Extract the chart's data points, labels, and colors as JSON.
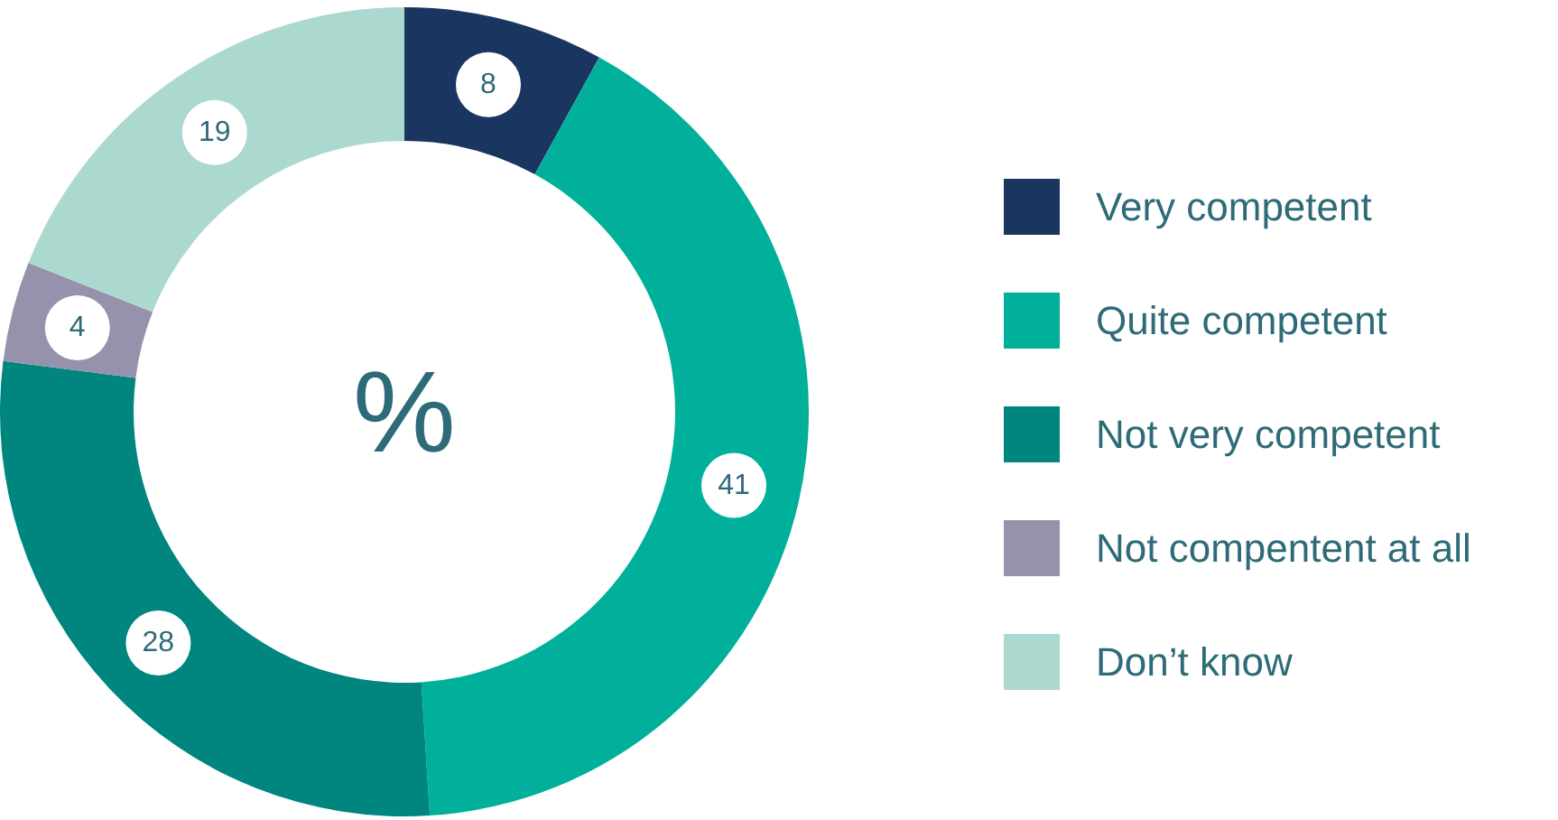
{
  "chart_data": {
    "type": "donut",
    "categories": [
      "Very competent",
      "Quite competent",
      "Not very competent",
      "Not compentent at all",
      "Don’t know"
    ],
    "values": [
      8,
      41,
      28,
      4,
      19
    ],
    "colors": [
      "#1b3561",
      "#00b09b",
      "#00857f",
      "#9692ab",
      "#acd9cf"
    ],
    "annotations": [
      "%"
    ],
    "data_labels": true,
    "legend": "right"
  }
}
